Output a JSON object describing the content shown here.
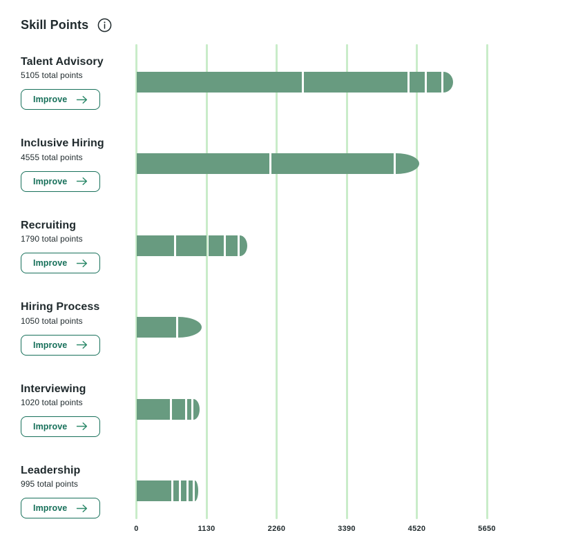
{
  "header": {
    "title": "Skill Points",
    "info_icon": "info-icon"
  },
  "labels": {
    "improve": "Improve"
  },
  "colors": {
    "bar": "#689b80",
    "grid": "#c9ecc9",
    "accent": "#17705a",
    "arrow": "#2e8a6b",
    "text": "#1f292c"
  },
  "skills": [
    {
      "name": "Talent Advisory",
      "points_label": "5105 total points"
    },
    {
      "name": "Inclusive Hiring",
      "points_label": "4555 total points"
    },
    {
      "name": "Recruiting",
      "points_label": "1790 total points"
    },
    {
      "name": "Hiring Process",
      "points_label": "1050 total points"
    },
    {
      "name": "Interviewing",
      "points_label": "1020 total points"
    },
    {
      "name": "Leadership",
      "points_label": "995 total points"
    }
  ],
  "chart_data": {
    "type": "bar",
    "orientation": "horizontal",
    "stacked": true,
    "title": "Skill Points",
    "categories": [
      "Talent Advisory",
      "Inclusive Hiring",
      "Recruiting",
      "Hiring Process",
      "Interviewing",
      "Leadership"
    ],
    "totals": [
      5105,
      4555,
      1790,
      1050,
      1020,
      995
    ],
    "segments": [
      [
        2665,
        1705,
        275,
        270,
        190
      ],
      [
        2145,
        2005,
        405
      ],
      [
        610,
        515,
        280,
        230,
        155
      ],
      [
        640,
        410
      ],
      [
        545,
        235,
        105,
        135
      ],
      [
        565,
        125,
        115,
        100,
        90
      ]
    ],
    "xlim": [
      0,
      5650
    ],
    "x_ticks": [
      0,
      1130,
      2260,
      3390,
      4520,
      5650
    ],
    "grid": true,
    "legend": false
  }
}
